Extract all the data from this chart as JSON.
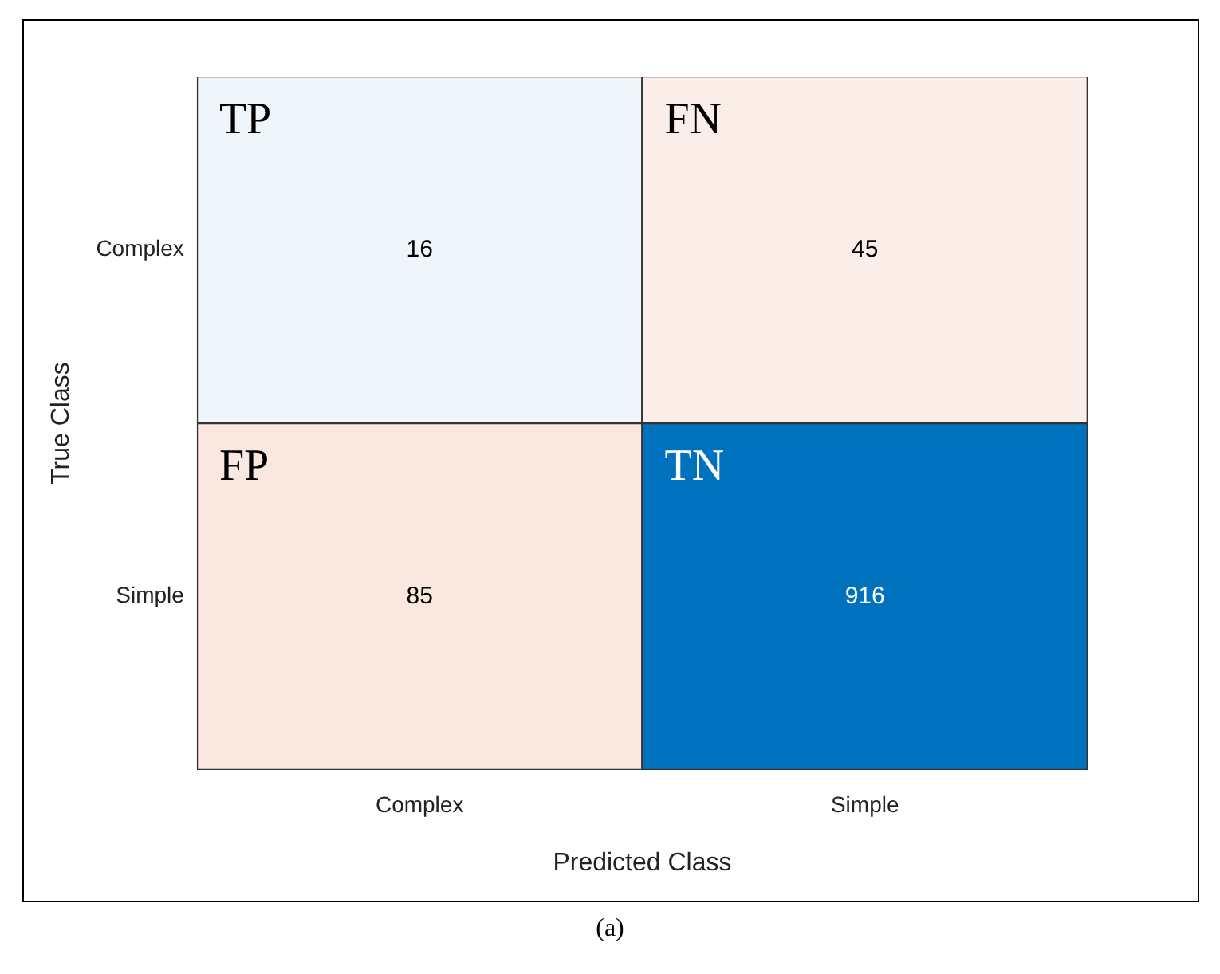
{
  "chart_data": {
    "type": "heatmap",
    "xlabel": "Predicted Class",
    "ylabel": "True Class",
    "categories": [
      "Complex",
      "Simple"
    ],
    "y_categories": [
      "Complex",
      "Simple"
    ],
    "cells": [
      [
        16,
        45
      ],
      [
        85,
        916
      ]
    ],
    "data_labels": true,
    "annotations": [
      "TP",
      "FN",
      "FP",
      "TN",
      "(a)"
    ]
  }
}
